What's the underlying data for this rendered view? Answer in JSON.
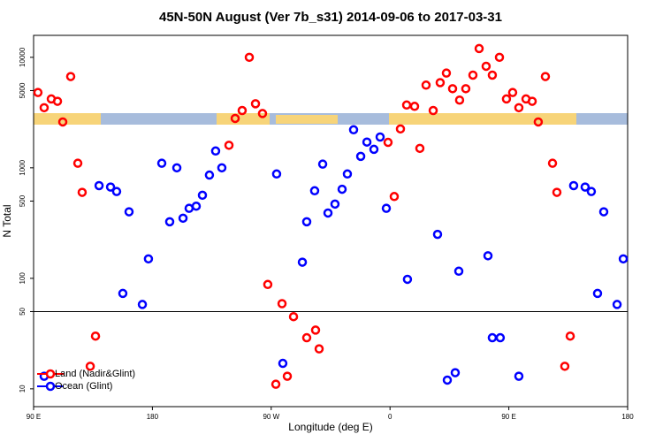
{
  "chart_data": {
    "type": "scatter",
    "title": "45N-50N August (Ver 7b_s31)   2014-09-06 to 2017-03-31",
    "xlabel": "Longitude (deg E)",
    "ylabel": "N Total",
    "xlim": [
      90,
      540
    ],
    "xticks": [
      {
        "value": 90,
        "label": "90 E"
      },
      180,
      {
        "value": 270,
        "label": "90 W"
      },
      {
        "value": 360,
        "label": "0"
      },
      {
        "value": 450,
        "label": "90 E"
      },
      {
        "value": 540,
        "label": "180"
      }
    ],
    "ylim": [
      6.9,
      15800
    ],
    "yticks": [
      10,
      50,
      100,
      500,
      1000,
      5000,
      10000
    ],
    "log_y": true,
    "hline": 50,
    "legend": "lower left",
    "series": [
      {
        "name": "Land (Nadir&Glint)",
        "color": "#ff0000",
        "x": [
          93.3,
          98.0,
          103.4,
          108.1,
          112.1,
          118.1,
          123.5,
          126.8,
          132.9,
          136.9,
          238.0,
          242.7,
          248.0,
          253.4,
          258.1,
          263.4,
          267.4,
          273.5,
          278.2,
          282.2,
          286.9,
          296.9,
          303.6,
          306.3,
          358.5,
          363.2,
          367.9,
          372.6,
          378.6,
          382.6,
          387.3,
          392.7,
          398.0,
          402.7,
          407.4,
          412.7,
          417.4,
          422.8,
          427.5,
          432.8,
          437.5,
          442.9,
          448.2,
          452.9,
          457.6,
          463.0,
          467.7,
          472.3,
          477.7,
          483.1,
          486.4,
          492.4,
          496.5
        ],
        "values": [
          4800,
          3500,
          4200,
          4000,
          2600,
          6700,
          1100,
          600,
          16,
          30,
          1600,
          2800,
          3300,
          10000,
          3800,
          3100,
          88,
          11,
          59,
          13,
          45,
          29,
          34,
          23,
          1700,
          550,
          2250,
          3700,
          3600,
          1500,
          5600,
          3300,
          5900,
          7200,
          5200,
          4100,
          5200,
          6900,
          12000,
          8300,
          6900,
          10000,
          4200,
          4800,
          3500,
          4200,
          4000,
          2600,
          6700,
          1100,
          600,
          16,
          30
        ]
      },
      {
        "name": "Ocean (Glint)",
        "color": "#0000ff",
        "x": [
          98.0,
          139.6,
          148.3,
          152.9,
          157.6,
          162.3,
          172.4,
          177.0,
          187.1,
          193.1,
          198.5,
          203.2,
          207.8,
          213.2,
          217.9,
          223.2,
          227.9,
          232.6,
          274.1,
          278.8,
          293.6,
          296.9,
          302.9,
          309.0,
          313.0,
          318.3,
          323.7,
          327.7,
          332.4,
          337.8,
          342.5,
          347.8,
          352.5,
          357.2,
          373.2,
          396.0,
          403.4,
          409.4,
          412.1,
          434.2,
          437.5,
          443.5,
          457.6,
          499.1,
          507.8,
          512.5,
          517.2,
          521.9,
          532.0,
          536.7
        ],
        "values": [
          13,
          690,
          670,
          610,
          73,
          400,
          58,
          150,
          1100,
          325,
          1000,
          350,
          430,
          450,
          565,
          860,
          1420,
          1000,
          880,
          17,
          140,
          325,
          620,
          1080,
          390,
          470,
          640,
          880,
          2210,
          1270,
          1710,
          1470,
          1900,
          430,
          98,
          250,
          12,
          14,
          116,
          160,
          29,
          29,
          13,
          690,
          670,
          610,
          73,
          400,
          58,
          150
        ]
      }
    ]
  }
}
